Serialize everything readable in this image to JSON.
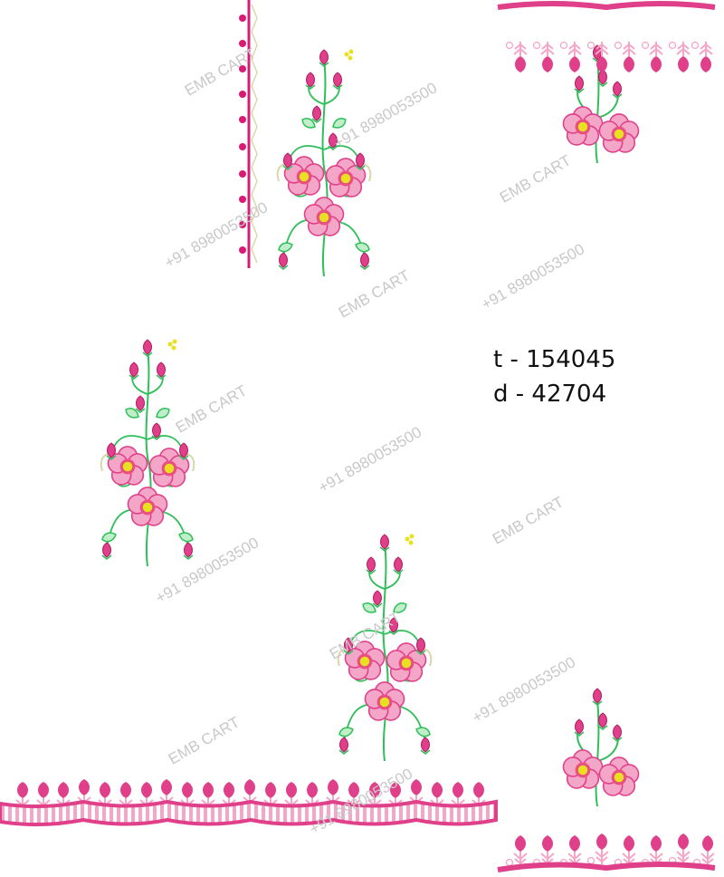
{
  "design_codes": {
    "t": "t - 154045",
    "d": "d - 42704"
  },
  "watermarks": {
    "brand": "EMB CART",
    "phone": "+91 8980053500"
  },
  "colors": {
    "pink": "#e0408a",
    "light_pink": "#f4a6c8",
    "green": "#2fbf5a",
    "yellow": "#e8e020",
    "magenta": "#d81b74"
  }
}
